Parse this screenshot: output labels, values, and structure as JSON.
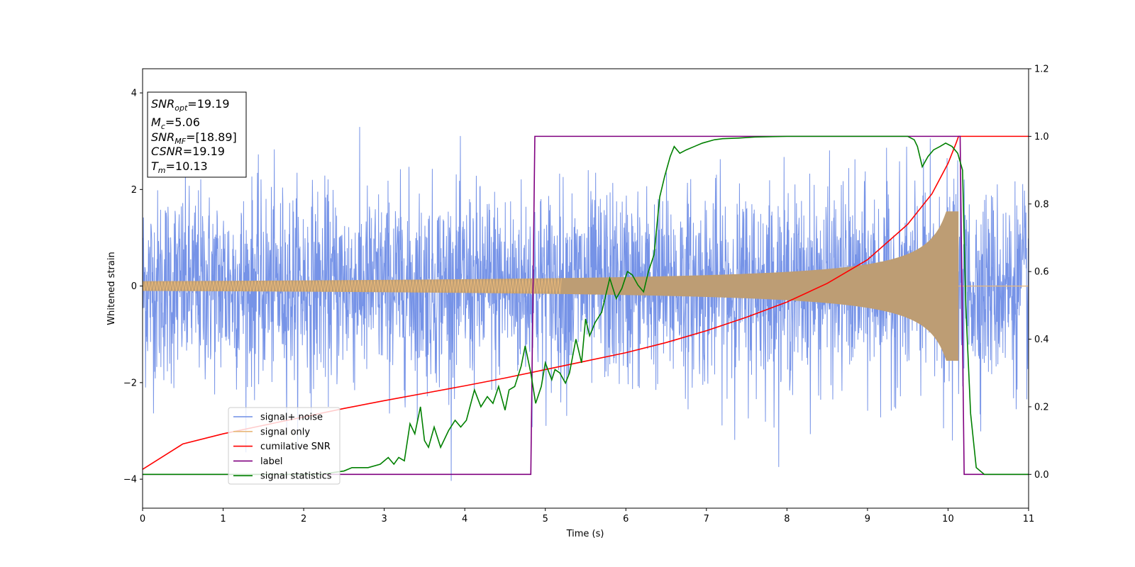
{
  "chart_data": {
    "type": "line",
    "xlabel": "Time (s)",
    "ylabel_left": "Whitened strain",
    "ylabel_right": "",
    "xlim": [
      0,
      11
    ],
    "ylim_left": [
      -4.6,
      4.5
    ],
    "ylim_right": [
      -0.1,
      1.2
    ],
    "x_ticks": [
      "0",
      "1",
      "2",
      "3",
      "4",
      "5",
      "6",
      "7",
      "8",
      "9",
      "10",
      "11"
    ],
    "y_ticks_left": [
      "−4",
      "−2",
      "0",
      "2",
      "4"
    ],
    "y_ticks_right": [
      "0.0",
      "0.2",
      "0.4",
      "0.6",
      "0.8",
      "1.0",
      "1.2"
    ],
    "grid": false,
    "legend_position": "lower-left",
    "colors": {
      "noise": "#6f8de6",
      "signal": "#e8b87a",
      "signal_fill": "#bd9d74",
      "csnr": "#ff0000",
      "label": "#800080",
      "stats": "#008000"
    },
    "annotation": {
      "snr_opt_base": "SNR",
      "snr_opt_sub": "opt",
      "snr_opt_value": "=19.19",
      "mc_base": "M",
      "mc_sub": "c",
      "mc_value": "=5.06",
      "snr_mf_base": "SNR",
      "snr_mf_sub": "MF",
      "snr_mf_value": "=[18.89]",
      "csnr_base": "CSNR",
      "csnr_value": "=19.19",
      "tm_base": "T",
      "tm_sub": "m",
      "tm_value": "=10.13"
    },
    "series": [
      {
        "name": "signal+ noise",
        "axis": "left",
        "description_stats": {
          "rms": 1.0,
          "envelope_max": 4.1,
          "envelope_min": -4.2,
          "x_range": [
            0,
            11
          ]
        }
      },
      {
        "name": "signal only",
        "axis": "left",
        "chirp": {
          "t_start": 0,
          "t_merge": 10.13,
          "amp_start": 0.1,
          "amp_peak": 1.85,
          "after_merge": 0
        }
      },
      {
        "name": "cumilative SNR",
        "axis": "right",
        "x": [
          0,
          0.5,
          1,
          1.5,
          2,
          2.5,
          3,
          3.5,
          4,
          4.5,
          5,
          5.5,
          6,
          6.5,
          7,
          7.5,
          8,
          8.5,
          9,
          9.5,
          9.8,
          10,
          10.1,
          10.13,
          11
        ],
        "y": [
          0.015,
          0.09,
          0.12,
          0.145,
          0.17,
          0.195,
          0.218,
          0.24,
          0.262,
          0.285,
          0.31,
          0.335,
          0.36,
          0.39,
          0.425,
          0.465,
          0.51,
          0.565,
          0.635,
          0.74,
          0.83,
          0.92,
          0.98,
          1.0,
          1.0
        ]
      },
      {
        "name": "label",
        "axis": "right",
        "x": [
          0,
          4.82,
          4.87,
          10.15,
          10.2,
          11
        ],
        "y": [
          0,
          0,
          1,
          1,
          0,
          0
        ]
      },
      {
        "name": "signal statistics",
        "axis": "right",
        "x": [
          0,
          2.2,
          2.5,
          2.6,
          2.8,
          2.95,
          3.05,
          3.12,
          3.18,
          3.25,
          3.32,
          3.38,
          3.45,
          3.5,
          3.55,
          3.62,
          3.7,
          3.8,
          3.88,
          3.95,
          4.02,
          4.12,
          4.2,
          4.28,
          4.35,
          4.42,
          4.5,
          4.55,
          4.62,
          4.7,
          4.75,
          4.82,
          4.88,
          4.95,
          5.0,
          5.08,
          5.12,
          5.18,
          5.25,
          5.3,
          5.38,
          5.45,
          5.5,
          5.55,
          5.62,
          5.7,
          5.8,
          5.88,
          5.95,
          6.02,
          6.08,
          6.15,
          6.22,
          6.28,
          6.35,
          6.42,
          6.48,
          6.55,
          6.6,
          6.67,
          6.75,
          6.85,
          6.95,
          7.1,
          7.2,
          7.4,
          7.6,
          8.0,
          8.5,
          9.0,
          9.5,
          9.58,
          9.62,
          9.68,
          9.75,
          9.82,
          9.9,
          9.97,
          10.05,
          10.12,
          10.18,
          10.22,
          10.28,
          10.35,
          10.45,
          11
        ],
        "y": [
          0.0,
          0.0,
          0.01,
          0.02,
          0.02,
          0.03,
          0.05,
          0.03,
          0.05,
          0.04,
          0.15,
          0.12,
          0.2,
          0.1,
          0.08,
          0.14,
          0.08,
          0.13,
          0.16,
          0.14,
          0.16,
          0.25,
          0.2,
          0.23,
          0.21,
          0.26,
          0.19,
          0.25,
          0.26,
          0.32,
          0.38,
          0.3,
          0.21,
          0.26,
          0.33,
          0.28,
          0.31,
          0.3,
          0.27,
          0.3,
          0.4,
          0.33,
          0.46,
          0.41,
          0.45,
          0.48,
          0.58,
          0.52,
          0.55,
          0.6,
          0.59,
          0.56,
          0.54,
          0.6,
          0.65,
          0.82,
          0.88,
          0.94,
          0.97,
          0.95,
          0.96,
          0.97,
          0.98,
          0.99,
          0.993,
          0.995,
          0.998,
          1.0,
          1.0,
          1.0,
          1.0,
          0.99,
          0.97,
          0.91,
          0.94,
          0.96,
          0.97,
          0.98,
          0.97,
          0.95,
          0.9,
          0.5,
          0.18,
          0.02,
          0.0,
          0.0
        ]
      }
    ]
  }
}
